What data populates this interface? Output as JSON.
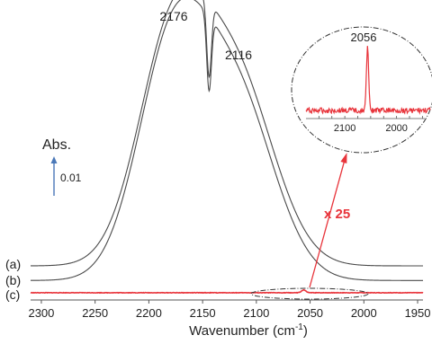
{
  "chart_data": {
    "type": "line",
    "xlabel": "Wavenumber (cm",
    "xlabel_sup": "-1",
    "xlabel_close": ")",
    "x_reversed": true,
    "xlim": [
      2310,
      1945
    ],
    "x_ticks": [
      2300,
      2250,
      2200,
      2150,
      2100,
      2050,
      2000,
      1950
    ],
    "y_axis_shown": false,
    "scale_bar": {
      "label": "Abs.",
      "value_label": "0.01",
      "value": 0.01
    },
    "peak_labels": [
      {
        "text": "2176",
        "x": 2176
      },
      {
        "text": "2116",
        "x": 2116
      }
    ],
    "series": [
      {
        "name": "(a)",
        "color": "#4a4a4a",
        "offset": 0.0,
        "peaks": [
          {
            "center": 2178,
            "height": 0.0568,
            "width": 32
          },
          {
            "center": 2118,
            "height": 0.0455,
            "width": 35
          }
        ],
        "dip": {
          "center": 2144,
          "depth": 0.019,
          "width": 2.2
        }
      },
      {
        "name": "(b)",
        "color": "#4a4a4a",
        "offset": -0.0037,
        "peaks": [
          {
            "center": 2178,
            "height": 0.0581,
            "width": 32
          },
          {
            "center": 2118,
            "height": 0.0447,
            "width": 35
          }
        ],
        "dip": {
          "center": 2144,
          "depth": 0.019,
          "width": 2.2
        }
      },
      {
        "name": "(c)",
        "color": "#e8343b",
        "offset": -0.0068,
        "peaks": [
          {
            "center": 2056,
            "height": 0.0007,
            "width": 2
          }
        ],
        "dip": null
      }
    ],
    "inset": {
      "magnification": "x 25",
      "peak_label": "2056",
      "xlim": [
        2175,
        1935
      ],
      "x_ticks": [
        2100,
        2000
      ],
      "peak_center": 2056,
      "color": "#e8343b"
    }
  }
}
